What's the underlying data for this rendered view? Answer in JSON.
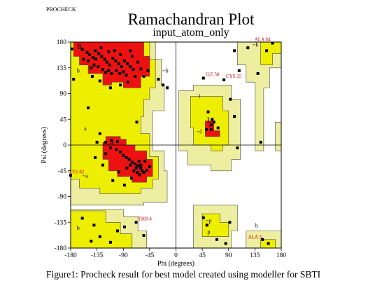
{
  "header": {
    "procheck": "PROCHECK",
    "title": "Ramachandran Plot",
    "subtitle": "input_atom_only"
  },
  "caption": "Figure1: Procheck result for best model created using modeller for SBTI",
  "colors": {
    "core": "#ee1111",
    "allowed": "#eeee00",
    "generous": "#eeeea0",
    "outline": "#000000",
    "label": "#cc0000"
  },
  "chart_data": {
    "type": "scatter",
    "title": "Ramachandran Plot",
    "subtitle": "input_atom_only",
    "xlabel": "Phi (degrees)",
    "ylabel": "Psi (degrees)",
    "xlim": [
      -180,
      180
    ],
    "ylim": [
      -180,
      180
    ],
    "xticks": [
      -180,
      -135,
      -90,
      -45,
      0,
      45,
      90,
      135,
      180
    ],
    "yticks": [
      -180,
      -135,
      -90,
      -45,
      0,
      45,
      90,
      135,
      180
    ],
    "xticklabels": [
      "-180",
      "-135",
      "-90",
      "-45",
      "0",
      "45",
      "90",
      "135",
      "180"
    ],
    "yticklabels": [
      "-180",
      "-135",
      "-90",
      "-45",
      "0",
      "45",
      "90",
      "135",
      "180"
    ],
    "grid": false,
    "zero_lines": true,
    "region_letters": [
      {
        "text": "B",
        "phi": -165,
        "psi": 168
      },
      {
        "text": "b",
        "phi": -167,
        "psi": 127
      },
      {
        "text": "~b",
        "phi": -18,
        "psi": 127
      },
      {
        "text": "A",
        "phi": -110,
        "psi": 0
      },
      {
        "text": "a",
        "phi": -155,
        "psi": 26
      },
      {
        "text": "~a",
        "phi": -155,
        "psi": -57
      },
      {
        "text": "L",
        "phi": 57,
        "psi": 40
      },
      {
        "text": "l",
        "phi": 40,
        "psi": 82
      },
      {
        "text": "~l",
        "phi": 40,
        "psi": 20
      },
      {
        "text": "~b",
        "phi": 136,
        "psi": 172
      },
      {
        "text": "b",
        "phi": 138,
        "psi": -144
      },
      {
        "text": "~p",
        "phi": 56,
        "psi": -135
      },
      {
        "text": "p",
        "phi": 56,
        "psi": -155
      },
      {
        "text": "b",
        "phi": -167,
        "psi": -148
      }
    ],
    "labelled_residues": [
      {
        "label": "ALA 84",
        "phi": 165,
        "psi": 178
      },
      {
        "label": "ILE 50",
        "phi": 47,
        "psi": 117
      },
      {
        "label": "CYS 25",
        "phi": 82,
        "psi": 114
      },
      {
        "label": "CYS 82",
        "phi": -180,
        "psi": -53
      },
      {
        "label": "THR 4",
        "phi": -68,
        "psi": -135
      },
      {
        "label": "ALA 3",
        "phi": 150,
        "psi": -167
      }
    ],
    "residues": [
      {
        "phi": -160,
        "psi": 167
      },
      {
        "phi": -152,
        "psi": 162
      },
      {
        "phi": -148,
        "psi": 158
      },
      {
        "phi": -142,
        "psi": 153
      },
      {
        "phi": -137,
        "psi": 150
      },
      {
        "phi": -132,
        "psi": 160
      },
      {
        "phi": -127,
        "psi": 155
      },
      {
        "phi": -122,
        "psi": 150
      },
      {
        "phi": -118,
        "psi": 145
      },
      {
        "phi": -113,
        "psi": 140
      },
      {
        "phi": -108,
        "psi": 152
      },
      {
        "phi": -103,
        "psi": 147
      },
      {
        "phi": -98,
        "psi": 142
      },
      {
        "phi": -93,
        "psi": 137
      },
      {
        "phi": -88,
        "psi": 147
      },
      {
        "phi": -83,
        "psi": 142
      },
      {
        "phi": -78,
        "psi": 137
      },
      {
        "phi": -73,
        "psi": 132
      },
      {
        "phi": -145,
        "psi": 135
      },
      {
        "phi": -140,
        "psi": 140
      },
      {
        "phi": -133,
        "psi": 137
      },
      {
        "phi": -125,
        "psi": 132
      },
      {
        "phi": -120,
        "psi": 127
      },
      {
        "phi": -115,
        "psi": 130
      },
      {
        "phi": -110,
        "psi": 125
      },
      {
        "phi": -102,
        "psi": 130
      },
      {
        "phi": -96,
        "psi": 125
      },
      {
        "phi": -90,
        "psi": 128
      },
      {
        "phi": -85,
        "psi": 122
      },
      {
        "phi": -150,
        "psi": 147
      },
      {
        "phi": -138,
        "psi": 165
      },
      {
        "phi": -128,
        "psi": 170
      },
      {
        "phi": -115,
        "psi": 163
      },
      {
        "phi": -105,
        "psi": 165
      },
      {
        "phi": -95,
        "psi": 158
      },
      {
        "phi": -75,
        "psi": 155
      },
      {
        "phi": -65,
        "psi": 145
      },
      {
        "phi": -60,
        "psi": 133
      },
      {
        "phi": -70,
        "psi": 120
      },
      {
        "phi": -55,
        "psi": 120
      },
      {
        "phi": -48,
        "psi": 130
      },
      {
        "phi": -82,
        "psi": 110
      },
      {
        "phi": -95,
        "psi": 105
      },
      {
        "phi": -143,
        "psi": 120
      },
      {
        "phi": -158,
        "psi": 150
      },
      {
        "phi": -112,
        "psi": 100
      },
      {
        "phi": -130,
        "psi": 112
      },
      {
        "phi": -67,
        "psi": 40
      },
      {
        "phi": -130,
        "psi": 20
      },
      {
        "phi": -135,
        "psi": 5
      },
      {
        "phi": -120,
        "psi": 5
      },
      {
        "phi": -110,
        "psi": 8
      },
      {
        "phi": -100,
        "psi": 6
      },
      {
        "phi": -112,
        "psi": -5
      },
      {
        "phi": -102,
        "psi": -8
      },
      {
        "phi": -95,
        "psi": -12
      },
      {
        "phi": -90,
        "psi": -18
      },
      {
        "phi": -85,
        "psi": -22
      },
      {
        "phi": -80,
        "psi": -25
      },
      {
        "phi": -75,
        "psi": -30
      },
      {
        "phi": -70,
        "psi": -33
      },
      {
        "phi": -65,
        "psi": -36
      },
      {
        "phi": -60,
        "psi": -40
      },
      {
        "phi": -68,
        "psi": -40
      },
      {
        "phi": -72,
        "psi": -45
      },
      {
        "phi": -78,
        "psi": -35
      },
      {
        "phi": -63,
        "psi": -28
      },
      {
        "phi": -58,
        "psi": -45
      },
      {
        "phi": -62,
        "psi": -52
      },
      {
        "phi": -55,
        "psi": -48
      },
      {
        "phi": -50,
        "psi": -44
      },
      {
        "phi": -66,
        "psi": -48
      },
      {
        "phi": -60,
        "psi": -35
      },
      {
        "phi": -84,
        "psi": -40
      },
      {
        "phi": -76,
        "psi": -58
      },
      {
        "phi": -120,
        "psi": -15
      },
      {
        "phi": -138,
        "psi": -22
      },
      {
        "phi": -125,
        "psi": -35
      },
      {
        "phi": -98,
        "psi": -47
      },
      {
        "phi": -45,
        "psi": -38
      },
      {
        "phi": -53,
        "psi": -28
      },
      {
        "phi": -108,
        "psi": -62
      },
      {
        "phi": -88,
        "psi": -70
      },
      {
        "phi": -150,
        "psi": 65
      },
      {
        "phi": -175,
        "psi": 115
      },
      {
        "phi": -178,
        "psi": 168
      },
      {
        "phi": -78,
        "psi": 165
      },
      {
        "phi": 52,
        "psi": 27
      },
      {
        "phi": 60,
        "psi": 35
      },
      {
        "phi": 60,
        "psi": 27
      },
      {
        "phi": 65,
        "psi": 40
      },
      {
        "phi": 72,
        "psi": 30
      },
      {
        "phi": 62,
        "psi": 45
      },
      {
        "phi": 55,
        "psi": 58
      },
      {
        "phi": 47,
        "psi": 117
      },
      {
        "phi": 82,
        "psi": 114
      },
      {
        "phi": 165,
        "psi": 178
      },
      {
        "phi": 148,
        "psi": -165
      },
      {
        "phi": 158,
        "psi": -172
      },
      {
        "phi": -180,
        "psi": -53
      },
      {
        "phi": -68,
        "psi": -135
      },
      {
        "phi": -160,
        "psi": -128
      },
      {
        "phi": -145,
        "psi": -168
      },
      {
        "phi": -130,
        "psi": -160
      },
      {
        "phi": -100,
        "psi": -150
      },
      {
        "phi": -112,
        "psi": -170
      },
      {
        "phi": -88,
        "psi": -143
      },
      {
        "phi": -55,
        "psi": -158
      },
      {
        "phi": -140,
        "psi": -140
      },
      {
        "phi": 47,
        "psi": -127
      },
      {
        "phi": 53,
        "psi": -140
      },
      {
        "phi": 92,
        "psi": -135
      },
      {
        "phi": 70,
        "psi": -165
      },
      {
        "phi": 85,
        "psi": -172
      },
      {
        "phi": 100,
        "psi": 50
      },
      {
        "phi": 105,
        "psi": -5
      },
      {
        "phi": 93,
        "psi": 80
      },
      {
        "phi": 108,
        "psi": 130
      },
      {
        "phi": 123,
        "psi": 170
      },
      {
        "phi": 155,
        "psi": 165
      },
      {
        "phi": 145,
        "psi": 5
      },
      {
        "phi": 100,
        "psi": 165
      },
      {
        "phi": 140,
        "psi": 125
      },
      {
        "phi": -22,
        "psi": 105
      },
      {
        "phi": -30,
        "psi": 115
      },
      {
        "phi": -15,
        "psi": 100
      }
    ]
  }
}
